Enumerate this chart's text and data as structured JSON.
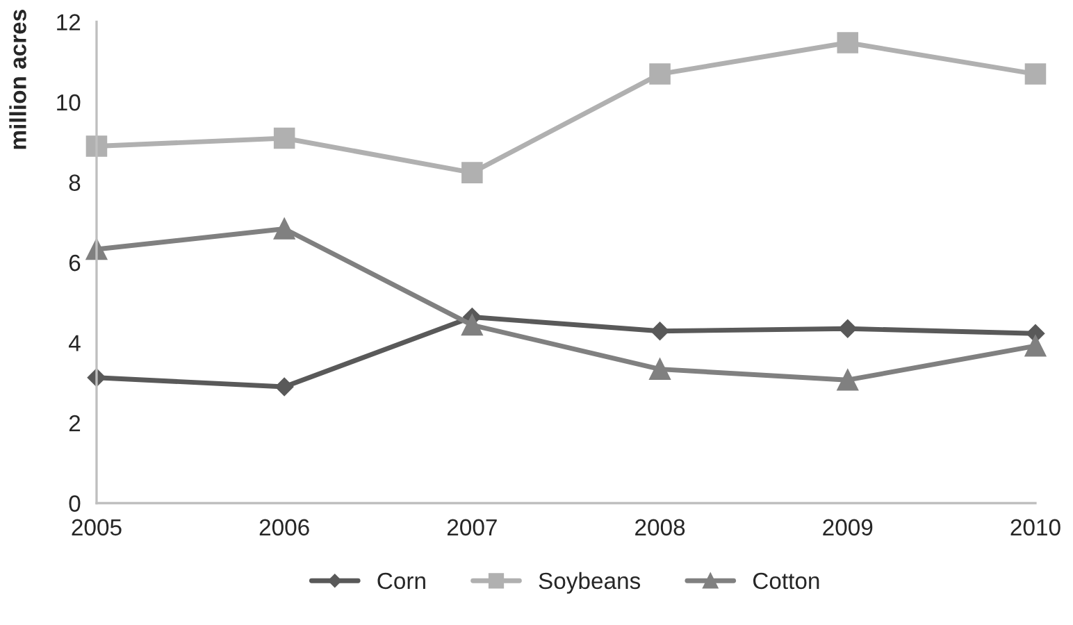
{
  "chart_data": {
    "type": "line",
    "ylabel": "million acres",
    "categories": [
      "2005",
      "2006",
      "2007",
      "2008",
      "2009",
      "2010"
    ],
    "series": [
      {
        "name": "Corn",
        "color": "#595959",
        "marker": "diamond",
        "values": [
          3.13,
          2.9,
          4.64,
          4.29,
          4.35,
          4.23
        ]
      },
      {
        "name": "Soybeans",
        "color": "#b0b0b0",
        "marker": "square",
        "values": [
          8.9,
          9.1,
          8.24,
          10.7,
          11.48,
          10.7
        ]
      },
      {
        "name": "Cotton",
        "color": "#808080",
        "marker": "triangle",
        "values": [
          6.33,
          6.84,
          4.44,
          3.34,
          3.07,
          3.92
        ]
      }
    ],
    "ylim": [
      0,
      12
    ],
    "yticks": [
      0,
      2,
      4,
      6,
      8,
      10,
      12
    ],
    "grid": false,
    "legend": "bottom",
    "line_style": "solid"
  }
}
